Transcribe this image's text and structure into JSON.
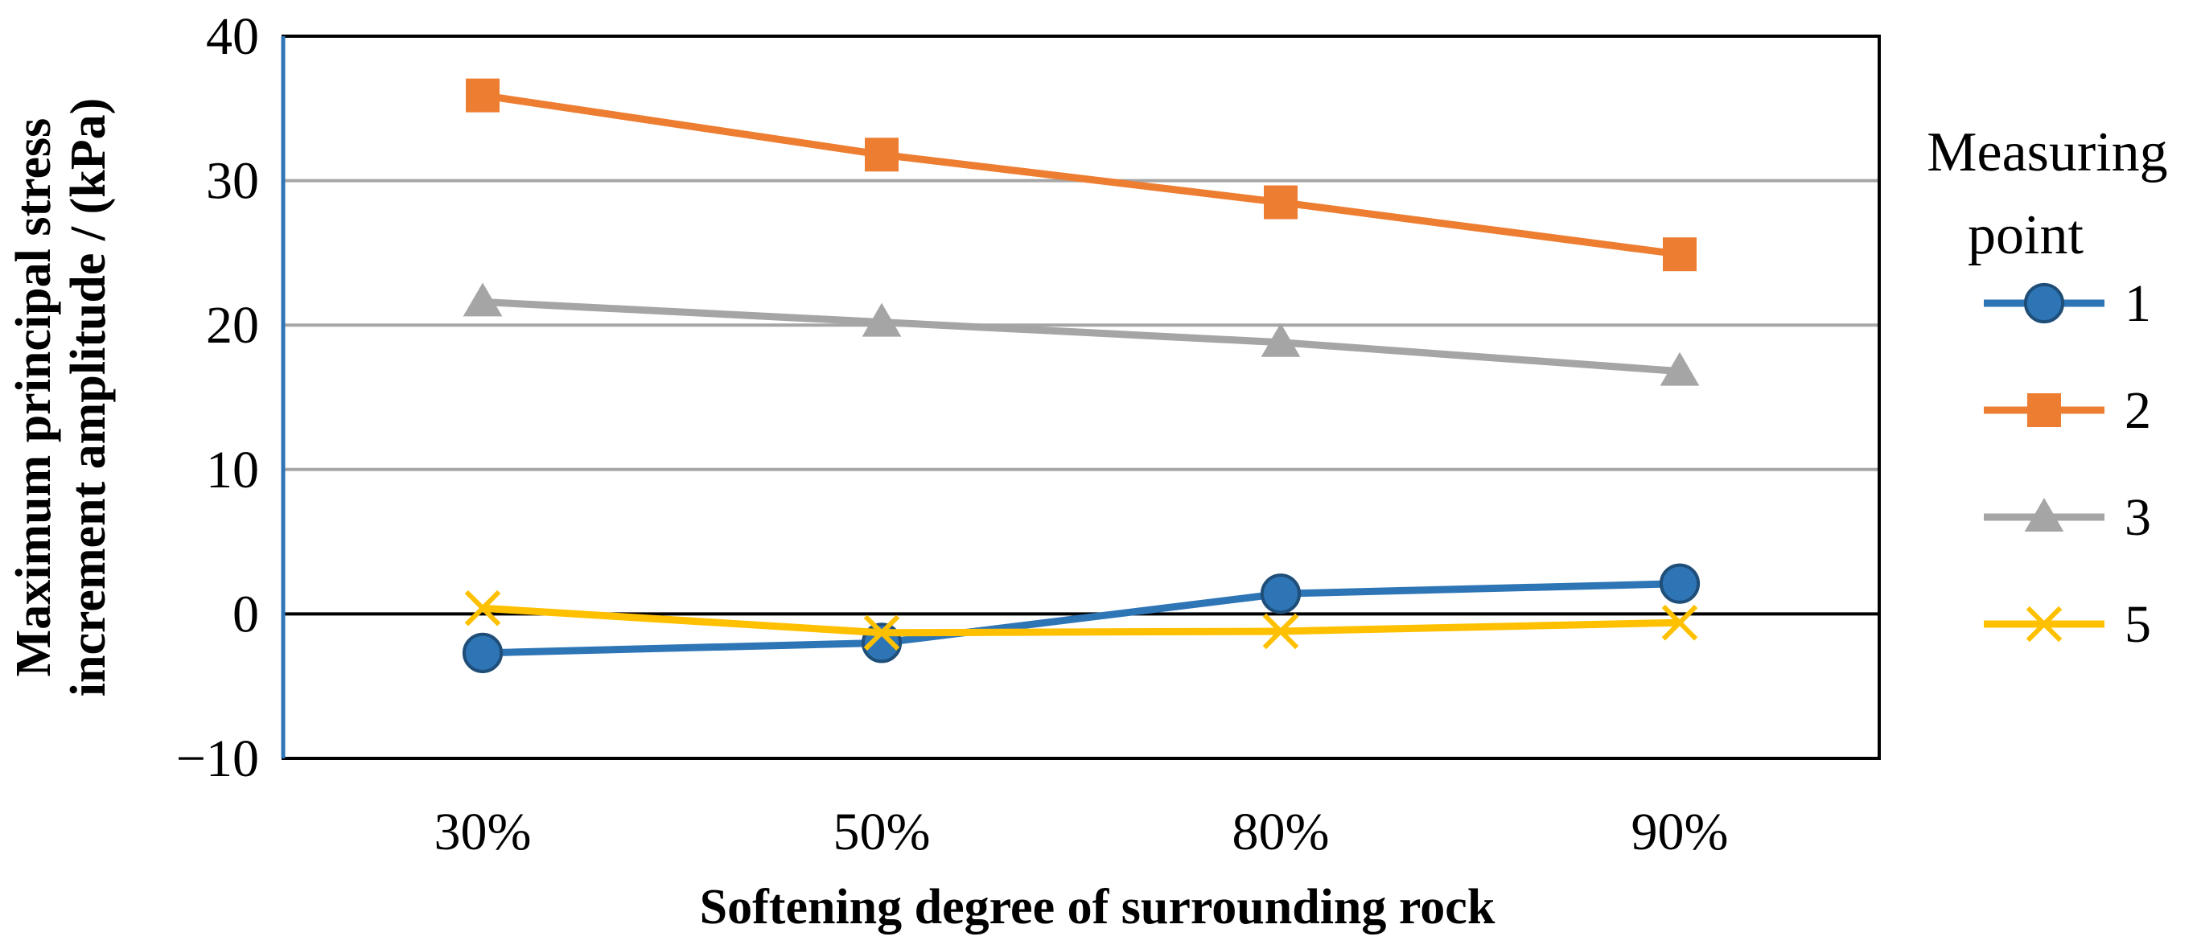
{
  "chart_data": {
    "type": "line",
    "title": "",
    "xlabel": "Softening degree of surrounding rock",
    "ylabel_lines": [
      "Maximum principal stress",
      "increment amplitude / (kPa)"
    ],
    "categories": [
      "30%",
      "50%",
      "80%",
      "90%"
    ],
    "ylim": [
      -10,
      40
    ],
    "yticks": [
      -10,
      0,
      10,
      20,
      30,
      40
    ],
    "ytick_labels": [
      "−10",
      "0",
      "10",
      "20",
      "30",
      "40"
    ],
    "grid": true,
    "legend": {
      "title_lines": [
        "Measuring",
        "point"
      ],
      "position": "right"
    },
    "series": [
      {
        "name": "1",
        "color": "#2E75B6",
        "marker": "circle",
        "values": [
          -2.7,
          -2.0,
          1.4,
          2.1
        ]
      },
      {
        "name": "2",
        "color": "#ED7D31",
        "marker": "square",
        "values": [
          35.9,
          31.8,
          28.5,
          24.9
        ]
      },
      {
        "name": "3",
        "color": "#A5A5A5",
        "marker": "triangle",
        "values": [
          21.6,
          20.2,
          18.8,
          16.8
        ]
      },
      {
        "name": "5",
        "color": "#FFC000",
        "marker": "x",
        "values": [
          0.4,
          -1.3,
          -1.2,
          -0.6
        ]
      }
    ]
  }
}
